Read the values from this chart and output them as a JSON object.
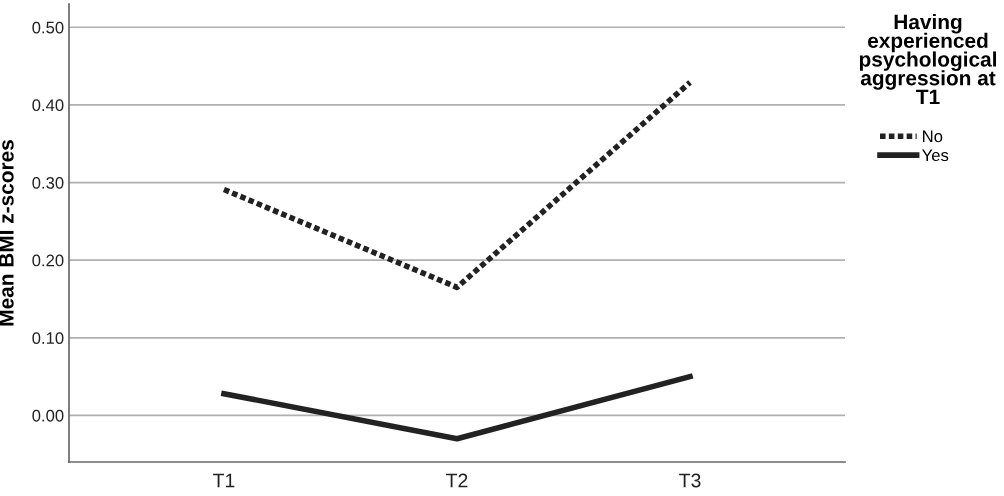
{
  "chart_data": {
    "type": "line",
    "ylabel": "Mean BMI z-scores",
    "legend_title": "Having experienced psychological aggression at T1",
    "categories": [
      "T1",
      "T2",
      "T3"
    ],
    "series": [
      {
        "name": "No",
        "color": "#222222",
        "line_style": "dotted",
        "values": [
          0.291,
          0.165,
          0.429
        ]
      },
      {
        "name": "Yes",
        "color": "#222222",
        "line_style": "solid",
        "values": [
          0.028,
          -0.03,
          0.05
        ]
      }
    ],
    "ylim": [
      -0.06,
      0.53
    ],
    "yticks": [
      {
        "value": 0,
        "label": "0.00"
      },
      {
        "value": 0.1,
        "label": "0.10"
      },
      {
        "value": 0.2,
        "label": "0.20"
      },
      {
        "value": 0.3,
        "label": "0.30"
      },
      {
        "value": 0.4,
        "label": "0.40"
      },
      {
        "value": 0.5,
        "label": "0.50"
      }
    ],
    "grid": "y",
    "legend": "top right",
    "marker": "none"
  }
}
